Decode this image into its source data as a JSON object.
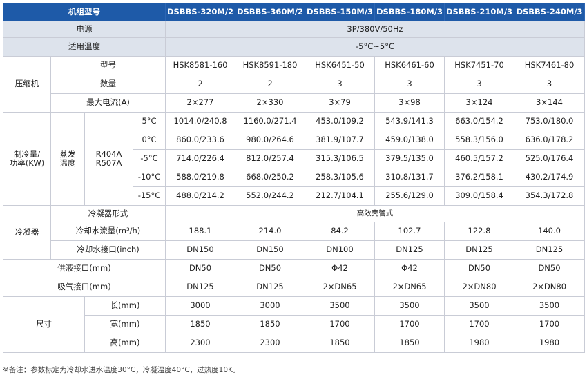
{
  "table": {
    "header": {
      "label": "机组型号",
      "models": [
        "DSBBS-320M/2",
        "DSBBS-360M/2",
        "DSBBS-150M/3",
        "DSBBS-180M/3",
        "DSBBS-210M/3",
        "DSBBS-240M/3"
      ]
    },
    "power": {
      "label": "电源",
      "value": "3P/380V/50Hz"
    },
    "temp_range": {
      "label": "适用温度",
      "value": "-5°C~5°C"
    },
    "compressor": {
      "group_label": "压缩机",
      "model": {
        "label": "型号",
        "values": [
          "HSK8581-160",
          "HSK8591-180",
          "HSK6451-50",
          "HSK6461-60",
          "HSK7451-70",
          "HSK7461-80"
        ]
      },
      "qty": {
        "label": "数量",
        "values": [
          "2",
          "2",
          "3",
          "3",
          "3",
          "3"
        ]
      },
      "current": {
        "label": "最大电流(A)",
        "values": [
          "2×277",
          "2×330",
          "3×79",
          "3×98",
          "3×124",
          "3×144"
        ]
      }
    },
    "cooling": {
      "group_label": "制冷量/\n功率(KW)",
      "evap_label": "蒸发\n温度",
      "refrigerant": "R404A\nR507A",
      "rows": [
        {
          "temp": "5°C",
          "values": [
            "1014.0/240.8",
            "1160.0/271.4",
            "453.0/109.2",
            "543.9/141.3",
            "663.0/154.2",
            "753.0/180.0"
          ]
        },
        {
          "temp": "0°C",
          "values": [
            "860.0/233.6",
            "980.0/264.6",
            "381.9/107.7",
            "459.0/138.0",
            "558.3/156.0",
            "636.0/178.2"
          ]
        },
        {
          "temp": "-5°C",
          "values": [
            "714.0/226.4",
            "812.0/257.4",
            "315.3/106.5",
            "379.5/135.0",
            "460.5/157.2",
            "525.0/176.4"
          ]
        },
        {
          "temp": "-10°C",
          "values": [
            "588.0/219.8",
            "668.0/250.2",
            "258.3/105.6",
            "310.8/131.7",
            "376.2/158.1",
            "430.2/174.9"
          ]
        },
        {
          "temp": "-15°C",
          "values": [
            "488.0/214.2",
            "552.0/244.2",
            "212.7/104.1",
            "255.6/129.0",
            "309.0/158.4",
            "354.3/172.8"
          ]
        }
      ]
    },
    "condenser": {
      "group_label": "冷凝器",
      "form": {
        "label": "冷凝器形式",
        "value": "高效壳管式"
      },
      "flow": {
        "label": "冷却水流量(m³/h)",
        "values": [
          "188.1",
          "214.0",
          "84.2",
          "102.7",
          "122.8",
          "140.0"
        ]
      },
      "port": {
        "label": "冷却水接口(inch)",
        "values": [
          "DN150",
          "DN150",
          "DN100",
          "DN125",
          "DN125",
          "DN125"
        ]
      }
    },
    "supply": {
      "label": "供液接口(mm)",
      "values": [
        "DN50",
        "DN50",
        "Φ42",
        "Φ42",
        "DN50",
        "DN50"
      ]
    },
    "suction": {
      "label": "吸气接口(mm)",
      "values": [
        "DN125",
        "DN125",
        "2×DN65",
        "2×DN65",
        "2×DN80",
        "2×DN80"
      ]
    },
    "size": {
      "group_label": "尺寸",
      "length": {
        "label": "长(mm)",
        "values": [
          "3000",
          "3000",
          "3500",
          "3500",
          "3500",
          "3500"
        ]
      },
      "width": {
        "label": "宽(mm)",
        "values": [
          "1850",
          "1850",
          "1700",
          "1700",
          "1700",
          "1700"
        ]
      },
      "height": {
        "label": "高(mm)",
        "values": [
          "2300",
          "2300",
          "1850",
          "1850",
          "1980",
          "1980"
        ]
      }
    }
  },
  "footnote": "※备注：参数标定为冷却水进水温度30°C，冷凝温度40°C，过热度10K。",
  "colors": {
    "header_bg": "#1e5aa8",
    "grey_row": "#dde3ec",
    "border": "#c9ccd6"
  }
}
